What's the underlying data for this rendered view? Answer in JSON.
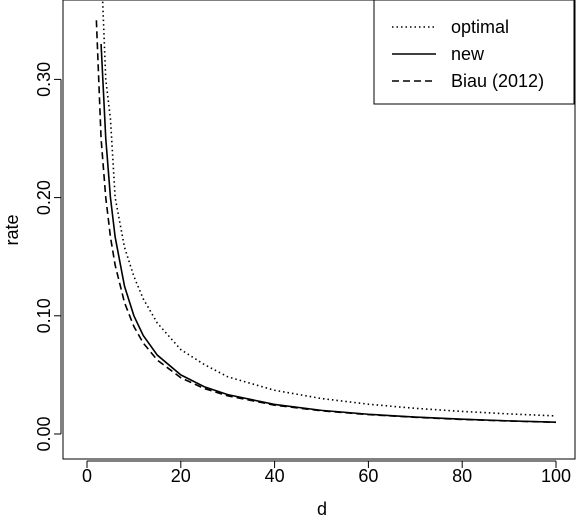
{
  "chart_data": {
    "type": "line",
    "title": "",
    "xlabel": "d",
    "ylabel": "rate",
    "xlim": [
      0,
      100
    ],
    "ylim": [
      0,
      0.36
    ],
    "x_ticks": [
      0,
      20,
      40,
      60,
      80,
      100
    ],
    "x_tick_labels": [
      "0",
      "20",
      "40",
      "60",
      "80",
      "100"
    ],
    "y_ticks": [
      0.0,
      0.1,
      0.2,
      0.3
    ],
    "y_tick_labels": [
      "0.00",
      "0.10",
      "0.20",
      "0.30"
    ],
    "grid": false,
    "legend_position": "top-right",
    "series": [
      {
        "name": "optimal",
        "line_style": "dotted",
        "color": "#000000",
        "x": [
          3,
          4,
          5,
          6,
          8,
          10,
          12,
          15,
          20,
          25,
          30,
          40,
          50,
          60,
          70,
          80,
          90,
          100
        ],
        "y": [
          0.4,
          0.3,
          0.2667,
          0.2,
          0.1579,
          0.1333,
          0.1143,
          0.0938,
          0.0714,
          0.0588,
          0.0484,
          0.037,
          0.03,
          0.0252,
          0.0217,
          0.0191,
          0.017,
          0.0153
        ]
      },
      {
        "name": "new",
        "line_style": "solid",
        "color": "#000000",
        "x": [
          3,
          4,
          5,
          6,
          8,
          10,
          12,
          15,
          20,
          25,
          30,
          40,
          50,
          60,
          70,
          80,
          90,
          100
        ],
        "y": [
          0.33,
          0.25,
          0.2,
          0.1667,
          0.125,
          0.1,
          0.0833,
          0.0667,
          0.05,
          0.04,
          0.0333,
          0.025,
          0.02,
          0.0167,
          0.0143,
          0.0125,
          0.0111,
          0.01
        ]
      },
      {
        "name": "Biau (2012)",
        "line_style": "dashed",
        "color": "#000000",
        "x": [
          2,
          3,
          4,
          5,
          6,
          8,
          10,
          12,
          15,
          20,
          25,
          30,
          40,
          50,
          60,
          70,
          80,
          90,
          100
        ],
        "y": [
          0.35,
          0.25,
          0.2,
          0.1667,
          0.1429,
          0.1111,
          0.0909,
          0.0769,
          0.0625,
          0.0476,
          0.0385,
          0.0323,
          0.0244,
          0.0196,
          0.0164,
          0.0141,
          0.0123,
          0.011,
          0.0099
        ]
      }
    ]
  }
}
